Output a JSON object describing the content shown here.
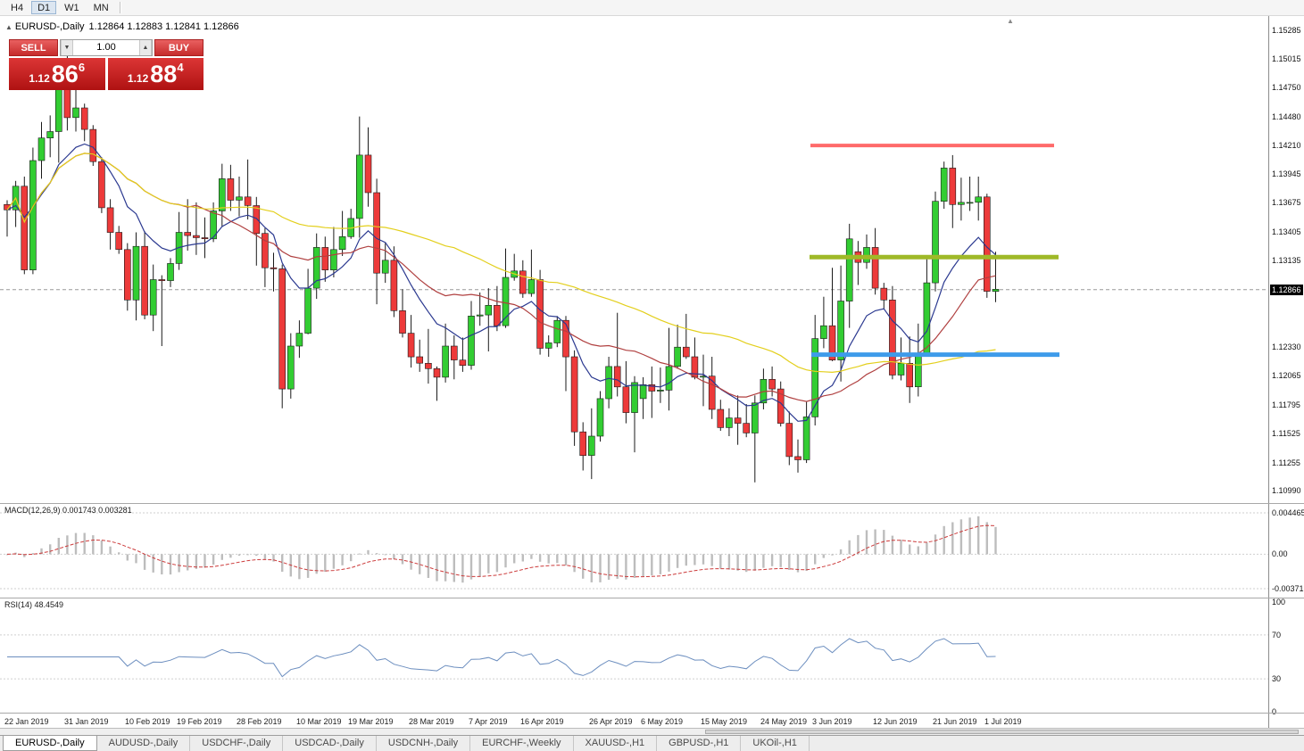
{
  "toolbar": {
    "timeframes": [
      {
        "label": "H4",
        "active": false
      },
      {
        "label": "D1",
        "active": true
      },
      {
        "label": "W1",
        "active": false
      },
      {
        "label": "MN",
        "active": false
      }
    ]
  },
  "chart": {
    "quote": {
      "symbol": "EURUSD-,Daily",
      "ohlc": "1.12864 1.12883 1.12841 1.12866"
    },
    "trade_panel": {
      "sell_label": "SELL",
      "buy_label": "BUY",
      "volume": "1.00",
      "sell_price": {
        "base": "1.12",
        "big": "86",
        "sup": "6"
      },
      "buy_price": {
        "base": "1.12",
        "big": "88",
        "sup": "4"
      }
    },
    "price_axis": {
      "labels": [
        "1.15285",
        "1.15015",
        "1.14750",
        "1.14480",
        "1.14210",
        "1.13945",
        "1.13675",
        "1.13405",
        "1.13135",
        "1.12330",
        "1.12065",
        "1.11795",
        "1.11525",
        "1.11255",
        "1.10990"
      ],
      "current": "1.12866"
    },
    "panels": {
      "macd": {
        "name": "MACD(12,26,9)",
        "values": "0.001743 0.003281",
        "axis": [
          "0.004465",
          "0.00",
          "-0.003715"
        ]
      },
      "rsi": {
        "name": "RSI(14)",
        "value": "48.4549",
        "axis": [
          "100",
          "70",
          "30",
          "0"
        ]
      }
    }
  },
  "chart_data": {
    "type": "candlestick",
    "symbol": "EURUSD",
    "timeframe": "D1",
    "price_range": {
      "top": 1.154,
      "bottom": 1.1091
    },
    "candles": [
      [
        "22 Jan",
        1.1366,
        1.137,
        1.1336,
        1.1361
      ],
      [
        "23 Jan",
        1.1361,
        1.1388,
        1.1345,
        1.1383
      ],
      [
        "24 Jan",
        1.1383,
        1.1392,
        1.1301,
        1.1305
      ],
      [
        "25 Jan",
        1.1305,
        1.1419,
        1.1301,
        1.1407
      ],
      [
        "28 Jan",
        1.1407,
        1.1443,
        1.139,
        1.1428
      ],
      [
        "29 Jan",
        1.1428,
        1.1449,
        1.141,
        1.1434
      ],
      [
        "30 Jan",
        1.1434,
        1.1501,
        1.1405,
        1.148
      ],
      [
        "31 Jan",
        1.148,
        1.1514,
        1.1435,
        1.1447
      ],
      [
        "1 Feb",
        1.1447,
        1.1489,
        1.1434,
        1.1456
      ],
      [
        "4 Feb",
        1.1456,
        1.146,
        1.1425,
        1.1436
      ],
      [
        "5 Feb",
        1.1436,
        1.144,
        1.1402,
        1.1406
      ],
      [
        "6 Feb",
        1.1406,
        1.141,
        1.1358,
        1.1363
      ],
      [
        "7 Feb",
        1.1363,
        1.1371,
        1.1324,
        1.134
      ],
      [
        "8 Feb",
        1.134,
        1.1346,
        1.132,
        1.1324
      ],
      [
        "11 Feb",
        1.1324,
        1.133,
        1.1267,
        1.1277
      ],
      [
        "12 Feb",
        1.1277,
        1.134,
        1.1258,
        1.1327
      ],
      [
        "13 Feb",
        1.1327,
        1.1341,
        1.1259,
        1.1263
      ],
      [
        "14 Feb",
        1.1263,
        1.131,
        1.1248,
        1.1296
      ],
      [
        "15 Feb",
        1.1296,
        1.13,
        1.1234,
        1.1295
      ],
      [
        "18 Feb",
        1.1295,
        1.1316,
        1.1289,
        1.1311
      ],
      [
        "19 Feb",
        1.1311,
        1.1359,
        1.1305,
        1.134
      ],
      [
        "20 Feb",
        1.134,
        1.1371,
        1.1323,
        1.1337
      ],
      [
        "21 Feb",
        1.1337,
        1.1368,
        1.1319,
        1.1335
      ],
      [
        "22 Feb",
        1.1335,
        1.1354,
        1.1316,
        1.1334
      ],
      [
        "25 Feb",
        1.1334,
        1.1368,
        1.1331,
        1.136
      ],
      [
        "26 Feb",
        1.136,
        1.1404,
        1.1345,
        1.139
      ],
      [
        "27 Feb",
        1.139,
        1.1403,
        1.136,
        1.137
      ],
      [
        "28 Feb",
        1.137,
        1.1392,
        1.1355,
        1.1373
      ],
      [
        "1 Mar",
        1.1373,
        1.1408,
        1.1352,
        1.1365
      ],
      [
        "4 Mar",
        1.1365,
        1.1373,
        1.1309,
        1.1339
      ],
      [
        "5 Mar",
        1.1339,
        1.1344,
        1.1289,
        1.1307
      ],
      [
        "6 Mar",
        1.1307,
        1.1321,
        1.1285,
        1.1306
      ],
      [
        "7 Mar",
        1.1306,
        1.131,
        1.1176,
        1.1194
      ],
      [
        "8 Mar",
        1.1194,
        1.1246,
        1.1185,
        1.1234
      ],
      [
        "11 Mar",
        1.1234,
        1.1258,
        1.1223,
        1.1246
      ],
      [
        "12 Mar",
        1.1246,
        1.1306,
        1.1245,
        1.1288
      ],
      [
        "13 Mar",
        1.1288,
        1.1339,
        1.1278,
        1.1326
      ],
      [
        "14 Mar",
        1.1326,
        1.1336,
        1.1294,
        1.1305
      ],
      [
        "15 Mar",
        1.1305,
        1.1345,
        1.1298,
        1.1324
      ],
      [
        "18 Mar",
        1.1324,
        1.136,
        1.1318,
        1.1336
      ],
      [
        "19 Mar",
        1.1336,
        1.1362,
        1.1334,
        1.1353
      ],
      [
        "20 Mar",
        1.1353,
        1.1448,
        1.1335,
        1.1412
      ],
      [
        "21 Mar",
        1.1412,
        1.1438,
        1.1364,
        1.1377
      ],
      [
        "22 Mar",
        1.1377,
        1.139,
        1.1273,
        1.1302
      ],
      [
        "25 Mar",
        1.1302,
        1.133,
        1.1293,
        1.1314
      ],
      [
        "26 Mar",
        1.1314,
        1.1327,
        1.1261,
        1.1267
      ],
      [
        "27 Mar",
        1.1267,
        1.1287,
        1.1242,
        1.1246
      ],
      [
        "28 Mar",
        1.1246,
        1.1263,
        1.1214,
        1.1224
      ],
      [
        "29 Mar",
        1.1224,
        1.124,
        1.121,
        1.1218
      ],
      [
        "1 Apr",
        1.1218,
        1.125,
        1.1199,
        1.1213
      ],
      [
        "2 Apr",
        1.1213,
        1.1215,
        1.1183,
        1.1205
      ],
      [
        "3 Apr",
        1.1205,
        1.1255,
        1.12,
        1.1234
      ],
      [
        "4 Apr",
        1.1234,
        1.1244,
        1.1203,
        1.1221
      ],
      [
        "5 Apr",
        1.1221,
        1.1242,
        1.121,
        1.1216
      ],
      [
        "8 Apr",
        1.1216,
        1.1276,
        1.1212,
        1.1262
      ],
      [
        "9 Apr",
        1.1262,
        1.1284,
        1.1253,
        1.1263
      ],
      [
        "10 Apr",
        1.1263,
        1.1288,
        1.1229,
        1.1272
      ],
      [
        "11 Apr",
        1.1272,
        1.129,
        1.1248,
        1.1253
      ],
      [
        "12 Apr",
        1.1253,
        1.1325,
        1.1251,
        1.1298
      ],
      [
        "15 Apr",
        1.1298,
        1.132,
        1.1295,
        1.1304
      ],
      [
        "16 Apr",
        1.1304,
        1.1314,
        1.1279,
        1.1283
      ],
      [
        "17 Apr",
        1.1283,
        1.1324,
        1.128,
        1.1296
      ],
      [
        "18 Apr",
        1.1296,
        1.1305,
        1.1226,
        1.1232
      ],
      [
        "19 Apr",
        1.1232,
        1.1244,
        1.1224,
        1.1237
      ],
      [
        "22 Apr",
        1.1237,
        1.1262,
        1.1233,
        1.1258
      ],
      [
        "23 Apr",
        1.1258,
        1.1262,
        1.1192,
        1.1224
      ],
      [
        "24 Apr",
        1.1224,
        1.123,
        1.1141,
        1.1154
      ],
      [
        "25 Apr",
        1.1154,
        1.1163,
        1.1118,
        1.1132
      ],
      [
        "26 Apr",
        1.1132,
        1.1176,
        1.111,
        1.115
      ],
      [
        "29 Apr",
        1.115,
        1.1192,
        1.1145,
        1.1185
      ],
      [
        "30 Apr",
        1.1185,
        1.1224,
        1.1176,
        1.1215
      ],
      [
        "1 May",
        1.1215,
        1.1265,
        1.1187,
        1.1196
      ],
      [
        "2 May",
        1.1196,
        1.122,
        1.1162,
        1.1172
      ],
      [
        "3 May",
        1.1172,
        1.1206,
        1.1135,
        1.12
      ],
      [
        "6 May",
        1.1185,
        1.1205,
        1.1166,
        1.1198
      ],
      [
        "7 May",
        1.1198,
        1.1215,
        1.1167,
        1.1192
      ],
      [
        "8 May",
        1.1192,
        1.1214,
        1.1181,
        1.1193
      ],
      [
        "9 May",
        1.1193,
        1.1251,
        1.1174,
        1.1215
      ],
      [
        "10 May",
        1.1215,
        1.1254,
        1.1213,
        1.1233
      ],
      [
        "13 May",
        1.1233,
        1.1264,
        1.1222,
        1.1224
      ],
      [
        "14 May",
        1.1224,
        1.1242,
        1.1203,
        1.1205
      ],
      [
        "15 May",
        1.1205,
        1.1226,
        1.1178,
        1.1206
      ],
      [
        "16 May",
        1.1206,
        1.1224,
        1.1166,
        1.1175
      ],
      [
        "17 May",
        1.1175,
        1.1184,
        1.1155,
        1.1158
      ],
      [
        "20 May",
        1.1158,
        1.1176,
        1.115,
        1.1167
      ],
      [
        "21 May",
        1.1167,
        1.1188,
        1.1142,
        1.1162
      ],
      [
        "22 May",
        1.1162,
        1.118,
        1.1149,
        1.1153
      ],
      [
        "23 May",
        1.1153,
        1.1188,
        1.1107,
        1.1181
      ],
      [
        "24 May",
        1.1181,
        1.1213,
        1.1175,
        1.1203
      ],
      [
        "27 May",
        1.1203,
        1.1215,
        1.1187,
        1.1194
      ],
      [
        "28 May",
        1.1194,
        1.1201,
        1.1159,
        1.1162
      ],
      [
        "29 May",
        1.1162,
        1.1173,
        1.1123,
        1.1131
      ],
      [
        "30 May",
        1.1131,
        1.1147,
        1.1116,
        1.1128
      ],
      [
        "31 May",
        1.1128,
        1.1182,
        1.1125,
        1.1168
      ],
      [
        "3 Jun",
        1.1168,
        1.1263,
        1.116,
        1.1241
      ],
      [
        "4 Jun",
        1.1241,
        1.128,
        1.1232,
        1.1253
      ],
      [
        "5 Jun",
        1.1253,
        1.1307,
        1.122,
        1.1221
      ],
      [
        "6 Jun",
        1.1221,
        1.1309,
        1.1201,
        1.1276
      ],
      [
        "7 Jun",
        1.1276,
        1.1348,
        1.1251,
        1.1334
      ],
      [
        "10 Jun",
        1.1322,
        1.1332,
        1.1291,
        1.1312
      ],
      [
        "11 Jun",
        1.1312,
        1.1338,
        1.1306,
        1.1326
      ],
      [
        "12 Jun",
        1.1326,
        1.1344,
        1.1282,
        1.1288
      ],
      [
        "13 Jun",
        1.1288,
        1.1293,
        1.1268,
        1.1277
      ],
      [
        "14 Jun",
        1.1277,
        1.129,
        1.1203,
        1.1207
      ],
      [
        "17 Jun",
        1.1207,
        1.1242,
        1.1202,
        1.1218
      ],
      [
        "18 Jun",
        1.1218,
        1.1243,
        1.1181,
        1.1196
      ],
      [
        "19 Jun",
        1.1196,
        1.1255,
        1.1187,
        1.1226
      ],
      [
        "20 Jun",
        1.1226,
        1.1317,
        1.1226,
        1.1293
      ],
      [
        "21 Jun",
        1.1293,
        1.1378,
        1.1285,
        1.1369
      ],
      [
        "24 Jun",
        1.1369,
        1.1406,
        1.1362,
        1.14
      ],
      [
        "25 Jun",
        1.14,
        1.1412,
        1.1344,
        1.1366
      ],
      [
        "26 Jun",
        1.1366,
        1.1391,
        1.1351,
        1.1368
      ],
      [
        "27 Jun",
        1.1368,
        1.1392,
        1.136,
        1.1368
      ],
      [
        "28 Jun",
        1.1368,
        1.1392,
        1.1351,
        1.1373
      ],
      [
        "1 Jul",
        1.1373,
        1.1376,
        1.1279,
        1.1285
      ],
      [
        "2 Jul",
        1.1285,
        1.1322,
        1.1275,
        1.1287
      ]
    ],
    "date_labels": [
      {
        "label": "22 Jan 2019",
        "i": 0
      },
      {
        "label": "31 Jan 2019",
        "i": 7
      },
      {
        "label": "10 Feb 2019",
        "i": 14
      },
      {
        "label": "19 Feb 2019",
        "i": 20
      },
      {
        "label": "28 Feb 2019",
        "i": 27
      },
      {
        "label": "10 Mar 2019",
        "i": 34
      },
      {
        "label": "19 Mar 2019",
        "i": 40
      },
      {
        "label": "28 Mar 2019",
        "i": 47
      },
      {
        "label": "7 Apr 2019",
        "i": 54
      },
      {
        "label": "16 Apr 2019",
        "i": 60
      },
      {
        "label": "26 Apr 2019",
        "i": 68
      },
      {
        "label": "6 May 2019",
        "i": 74
      },
      {
        "label": "15 May 2019",
        "i": 81
      },
      {
        "label": "24 May 2019",
        "i": 88
      },
      {
        "label": "3 Jun 2019",
        "i": 94
      },
      {
        "label": "12 Jun 2019",
        "i": 101
      },
      {
        "label": "21 Jun 2019",
        "i": 108
      },
      {
        "label": "1 Jul 2019",
        "i": 114
      }
    ],
    "moving_averages": [
      {
        "period": 10,
        "method": "ema",
        "color": "#2B3990"
      },
      {
        "period": 20,
        "method": "sma",
        "color": "#B04040"
      },
      {
        "period": 50,
        "method": "sma",
        "color": "#E3CF1C"
      }
    ],
    "lines": [
      {
        "name": "resistance-line",
        "price": 1.1421,
        "i1": 93.5,
        "i2": 121.8,
        "color": "#FF6A6A",
        "width": 4
      },
      {
        "name": "pivot-line",
        "price": 1.1317,
        "i1": 93.4,
        "i2": 122.3,
        "color": "#9FB928",
        "width": 5
      },
      {
        "name": "support-line",
        "price": 1.1226,
        "i1": 93.6,
        "i2": 122.4,
        "color": "#3E9BEA",
        "width": 5
      }
    ],
    "indicators": {
      "macd": {
        "fast": 12,
        "slow": 26,
        "signal": 9
      },
      "rsi": {
        "period": 14,
        "levels": [
          30,
          70
        ]
      }
    },
    "colors": {
      "up": "#32CD32",
      "down": "#ED3A3A",
      "wick": "#1A1A1A",
      "macd_hist": "#BDBDBD",
      "macd_signal": "#CC3B3B",
      "rsi": "#6C8EBF",
      "bid_line": "#9A9A9A",
      "grid": "#CFCFCF"
    }
  },
  "tabs": [
    {
      "label": "EURUSD-,Daily",
      "active": true
    },
    {
      "label": "AUDUSD-,Daily",
      "active": false
    },
    {
      "label": "USDCHF-,Daily",
      "active": false
    },
    {
      "label": "USDCAD-,Daily",
      "active": false
    },
    {
      "label": "USDCNH-,Daily",
      "active": false
    },
    {
      "label": "EURCHF-,Weekly",
      "active": false
    },
    {
      "label": "XAUUSD-,H1",
      "active": false
    },
    {
      "label": "GBPUSD-,H1",
      "active": false
    },
    {
      "label": "UKOil-,H1",
      "active": false
    }
  ]
}
